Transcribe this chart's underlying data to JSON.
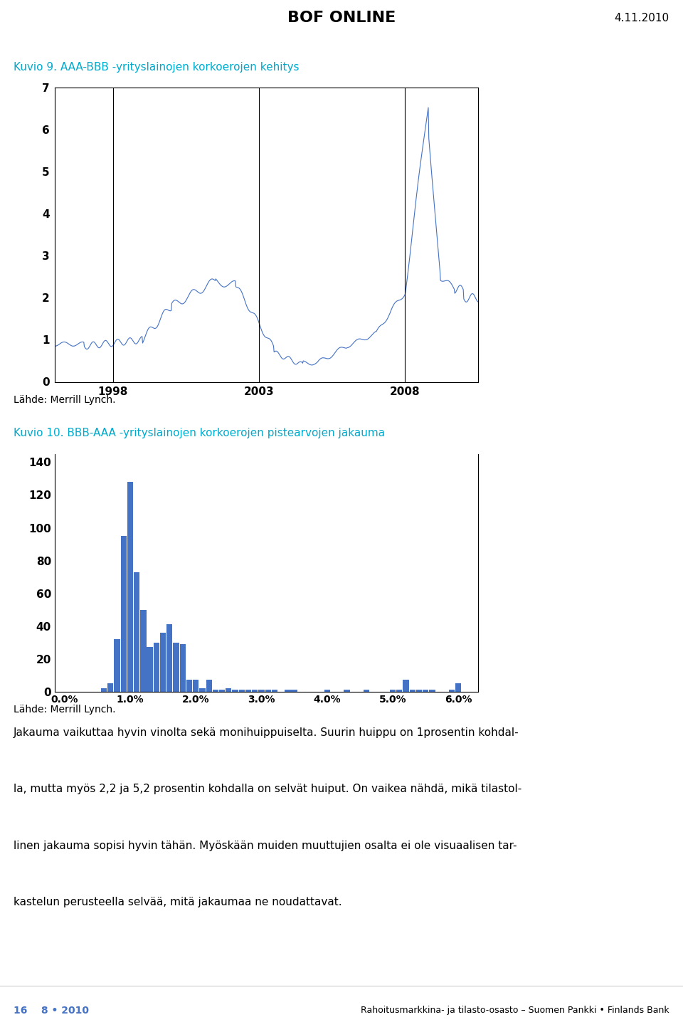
{
  "header_title": "BOF ONLINE",
  "header_date": "4.11.2010",
  "header_bar_color": "#8B1A1A",
  "bg_color": "#ffffff",
  "page_bg": "#f0f0f0",
  "chart1_title": "Kuvio 9. AAA-BBB -yrityslainojen korkoerojen kehitys",
  "chart1_title_color": "#00AACC",
  "chart1_source": "Lähde: Merrill Lynch.",
  "chart1_yticks": [
    0,
    1,
    2,
    3,
    4,
    5,
    6,
    7
  ],
  "chart1_xticks": [
    1998,
    2003,
    2008
  ],
  "chart1_ylim": [
    0,
    7
  ],
  "chart1_line_color": "#4472C4",
  "chart2_title": "Kuvio 10. BBB-AAA -yrityslainojen korkoerojen pistearvojen jakauma",
  "chart2_title_color": "#00AACC",
  "chart2_source": "Lähde: Merrill Lynch.",
  "chart2_bar_color": "#4472C4",
  "chart2_categories": [
    0.0,
    0.1,
    0.2,
    0.3,
    0.4,
    0.5,
    0.6,
    0.7,
    0.8,
    0.9,
    1.0,
    1.1,
    1.2,
    1.3,
    1.4,
    1.5,
    1.6,
    1.7,
    1.8,
    1.9,
    2.0,
    2.1,
    2.2,
    2.3,
    2.4,
    2.5,
    2.6,
    2.7,
    2.8,
    2.9,
    3.0,
    3.1,
    3.2,
    3.3,
    3.4,
    3.5,
    3.6,
    3.7,
    3.8,
    3.9,
    4.0,
    4.1,
    4.2,
    4.3,
    4.4,
    4.5,
    4.6,
    4.7,
    4.8,
    4.9,
    5.0,
    5.1,
    5.2,
    5.3,
    5.4,
    5.5,
    5.6,
    5.7,
    5.8,
    5.9,
    6.0
  ],
  "chart2_values": [
    0,
    0,
    0,
    0,
    0,
    0,
    2,
    5,
    32,
    95,
    128,
    73,
    50,
    27,
    30,
    36,
    41,
    30,
    29,
    7,
    7,
    2,
    7,
    1,
    1,
    2,
    1,
    1,
    1,
    1,
    1,
    1,
    1,
    0,
    1,
    1,
    0,
    0,
    0,
    0,
    1,
    0,
    0,
    1,
    0,
    0,
    1,
    0,
    0,
    0,
    1,
    1,
    7,
    1,
    1,
    1,
    1,
    0,
    0,
    1,
    5
  ],
  "chart2_xtick_labels": [
    "0.0%",
    "1.0%",
    "2.0%",
    "3.0%",
    "4.0%",
    "5.0%",
    "6.0%"
  ],
  "chart2_xtick_positions": [
    0.0,
    1.0,
    2.0,
    3.0,
    4.0,
    5.0,
    6.0
  ],
  "chart2_yticks": [
    0,
    20,
    40,
    60,
    80,
    100,
    120,
    140
  ],
  "chart2_ylim": [
    0,
    145
  ],
  "body_text": "Jakauma vaikuttaa hyvin vinolta sekä monihuippuiselta. Suurin huippu on 1prosentin kohdalla, mutta myös 2,2 ja 5,2 prosentin kohdalla on selvät huiput. On vaikea nähdä, mikä tilastollinen jakauma sopisi hyvin tähän. Myöskään muiden muuttujien osalta ei ole visuaalisen tarkastelun perusteella selvää, mitä jakaumaa ne noudattavat.",
  "footer_left": "16    8 • 2010",
  "footer_right": "Rahoitusmarkkina- ja tilasto-osasto – Suomen Pankki • Finlands Bank",
  "footer_color": "#4472C4"
}
